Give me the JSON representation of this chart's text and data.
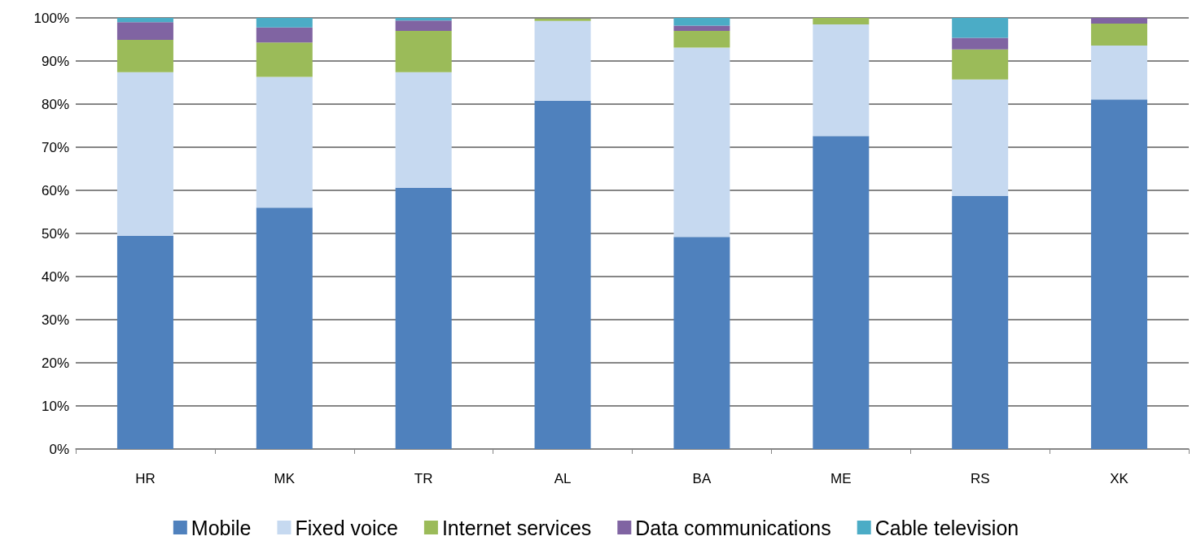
{
  "chart_data": {
    "type": "bar",
    "stacked": true,
    "categories": [
      "HR",
      "MK",
      "TR",
      "AL",
      "BA",
      "ME",
      "RS",
      "XK"
    ],
    "series": [
      {
        "name": "Mobile",
        "color": "#4f81bd",
        "values": [
          49.5,
          56,
          60.6,
          80.8,
          49.2,
          72.6,
          58.7,
          81.1
        ]
      },
      {
        "name": "Fixed voice",
        "color": "#c6d9f0",
        "values": [
          37.9,
          30.3,
          26.8,
          18.5,
          43.9,
          25.9,
          27.0,
          12.5
        ]
      },
      {
        "name": "Internet services",
        "color": "#9bbb59",
        "values": [
          7.5,
          8,
          9.6,
          0.5,
          3.9,
          1.5,
          7.0,
          5.1
        ]
      },
      {
        "name": "Data communications",
        "color": "#8064a2",
        "values": [
          4.1,
          3.5,
          2.4,
          null,
          1.2,
          0,
          2.7,
          1.3
        ]
      },
      {
        "name": "Cable television",
        "color": "#4bacc6",
        "values": [
          1.0,
          2.2,
          0.6,
          0,
          1.8,
          0,
          4.6,
          0
        ]
      }
    ],
    "ylim": [
      0,
      100
    ],
    "yticks": [
      {
        "value": 0,
        "label": "0%"
      },
      {
        "value": 10,
        "label": "10%"
      },
      {
        "value": 20,
        "label": "20%"
      },
      {
        "value": 30,
        "label": "30%"
      },
      {
        "value": 40,
        "label": "40%"
      },
      {
        "value": 50,
        "label": "50%"
      },
      {
        "value": 60,
        "label": "60%"
      },
      {
        "value": 70,
        "label": "70%"
      },
      {
        "value": 80,
        "label": "80%"
      },
      {
        "value": 90,
        "label": "90%"
      },
      {
        "value": 100,
        "label": "100%"
      }
    ],
    "grid": "y",
    "legend": "bottom"
  }
}
